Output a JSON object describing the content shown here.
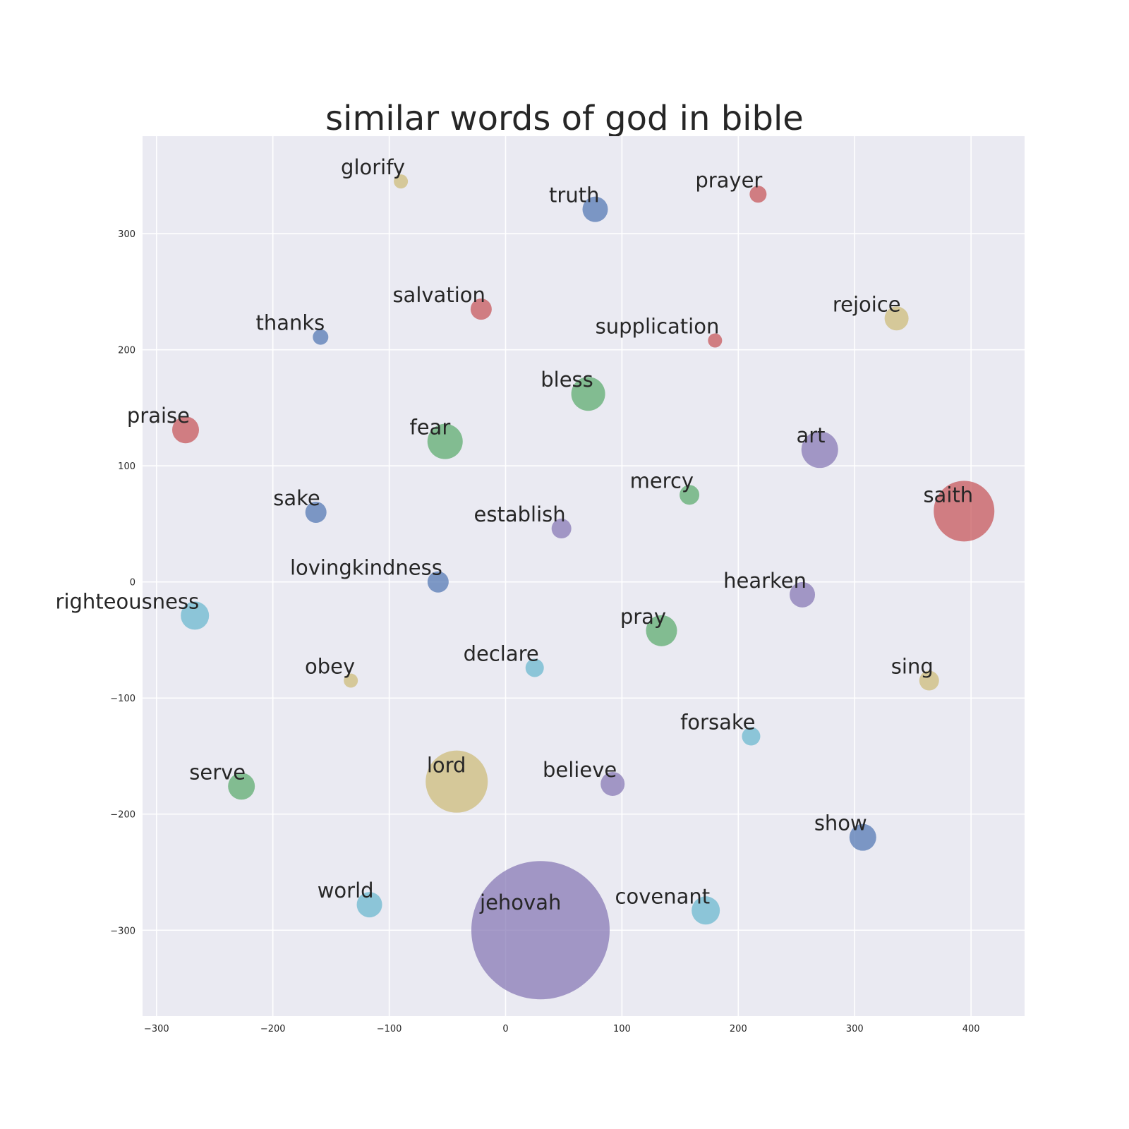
{
  "chart_data": {
    "type": "scatter",
    "title": "similar words of god in bible",
    "xlabel": "",
    "ylabel": "",
    "xlim": [
      -312,
      446
    ],
    "ylim": [
      -374,
      384
    ],
    "xticks": [
      -300,
      -200,
      -100,
      0,
      100,
      200,
      300,
      400
    ],
    "yticks": [
      -300,
      -200,
      -100,
      0,
      100,
      200,
      300
    ],
    "grid": true,
    "palette": {
      "blue": "#4c72b0",
      "green": "#55a868",
      "red": "#c44e52",
      "purple": "#8172b2",
      "yellow": "#ccb974",
      "cyan": "#64b5cd"
    },
    "points": [
      {
        "label": "glorify",
        "x": -90,
        "y": 345,
        "size": 10,
        "color": "yellow"
      },
      {
        "label": "truth",
        "x": 77,
        "y": 321,
        "size": 18,
        "color": "blue"
      },
      {
        "label": "prayer",
        "x": 217,
        "y": 334,
        "size": 12,
        "color": "red"
      },
      {
        "label": "salvation",
        "x": -21,
        "y": 235,
        "size": 15,
        "color": "red"
      },
      {
        "label": "thanks",
        "x": -159,
        "y": 211,
        "size": 11,
        "color": "blue"
      },
      {
        "label": "supplication",
        "x": 180,
        "y": 208,
        "size": 10,
        "color": "red"
      },
      {
        "label": "rejoice",
        "x": 336,
        "y": 227,
        "size": 17,
        "color": "yellow"
      },
      {
        "label": "bless",
        "x": 71,
        "y": 162,
        "size": 24,
        "color": "green"
      },
      {
        "label": "praise",
        "x": -275,
        "y": 131,
        "size": 19,
        "color": "red"
      },
      {
        "label": "fear",
        "x": -52,
        "y": 121,
        "size": 25,
        "color": "green"
      },
      {
        "label": "art",
        "x": 270,
        "y": 114,
        "size": 26,
        "color": "purple"
      },
      {
        "label": "mercy",
        "x": 158,
        "y": 75,
        "size": 14,
        "color": "green"
      },
      {
        "label": "saith",
        "x": 394,
        "y": 61,
        "size": 43,
        "color": "red"
      },
      {
        "label": "sake",
        "x": -163,
        "y": 60,
        "size": 15,
        "color": "blue"
      },
      {
        "label": "establish",
        "x": 48,
        "y": 46,
        "size": 14,
        "color": "purple"
      },
      {
        "label": "lovingkindness",
        "x": -58,
        "y": 0,
        "size": 15,
        "color": "blue"
      },
      {
        "label": "hearken",
        "x": 255,
        "y": -11,
        "size": 18,
        "color": "purple"
      },
      {
        "label": "righteousness",
        "x": -267,
        "y": -29,
        "size": 20,
        "color": "cyan"
      },
      {
        "label": "pray",
        "x": 134,
        "y": -42,
        "size": 22,
        "color": "green"
      },
      {
        "label": "declare",
        "x": 25,
        "y": -74,
        "size": 13,
        "color": "cyan"
      },
      {
        "label": "obey",
        "x": -133,
        "y": -85,
        "size": 10,
        "color": "yellow"
      },
      {
        "label": "sing",
        "x": 364,
        "y": -85,
        "size": 14,
        "color": "yellow"
      },
      {
        "label": "forsake",
        "x": 211,
        "y": -133,
        "size": 13,
        "color": "cyan"
      },
      {
        "label": "serve",
        "x": -227,
        "y": -176,
        "size": 19,
        "color": "green"
      },
      {
        "label": "lord",
        "x": -42,
        "y": -172,
        "size": 44,
        "color": "yellow"
      },
      {
        "label": "believe",
        "x": 92,
        "y": -174,
        "size": 17,
        "color": "purple"
      },
      {
        "label": "show",
        "x": 307,
        "y": -220,
        "size": 19,
        "color": "blue"
      },
      {
        "label": "world",
        "x": -117,
        "y": -278,
        "size": 18,
        "color": "cyan"
      },
      {
        "label": "covenant",
        "x": 172,
        "y": -283,
        "size": 20,
        "color": "cyan"
      },
      {
        "label": "jehovah",
        "x": 30,
        "y": -300,
        "size": 98,
        "color": "purple"
      }
    ]
  }
}
